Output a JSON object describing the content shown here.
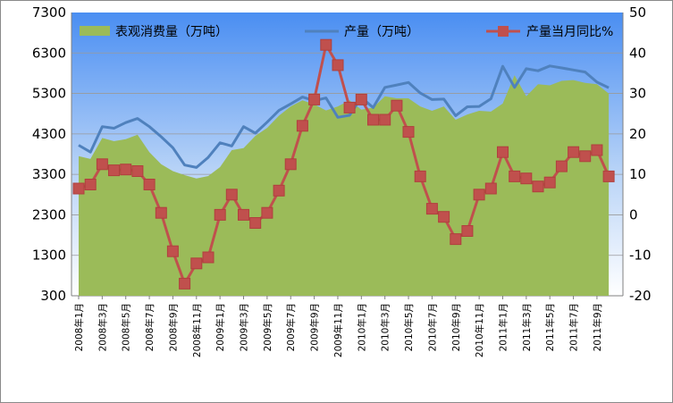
{
  "chart_data": {
    "type": "area+line",
    "title": "",
    "legend": {
      "placement": "top",
      "entries": [
        {
          "label": "表观消费量（万吨）",
          "kind": "area",
          "color": "#9bbb59"
        },
        {
          "label": "产量（万吨）",
          "kind": "line",
          "color": "#4f81bd"
        },
        {
          "label": "产量当月同比%",
          "kind": "line-square",
          "color": "#c0504d"
        }
      ]
    },
    "left_axis": {
      "min": 300,
      "max": 7300,
      "ticks": [
        "300",
        "1300",
        "2300",
        "3300",
        "4300",
        "5300",
        "6300",
        "7300"
      ]
    },
    "right_axis": {
      "min": -20,
      "max": 50,
      "ticks": [
        "-20",
        "-10",
        "0",
        "10",
        "20",
        "30",
        "40",
        "50"
      ]
    },
    "x_tick_labels": [
      "2008年1月",
      "2008年3月",
      "2008年5月",
      "2008年7月",
      "2008年9月",
      "2008年11月",
      "2009年1月",
      "2009年3月",
      "2009年5月",
      "2009年7月",
      "2009年9月",
      "2009年11月",
      "2010年1月",
      "2010年3月",
      "2010年5月",
      "2010年7月",
      "2010年9月",
      "2010年11月",
      "2011年1月",
      "2011年3月",
      "2011年5月",
      "2011年7月",
      "2011年9月"
    ],
    "x": [
      "2008-01",
      "2008-02",
      "2008-03",
      "2008-04",
      "2008-05",
      "2008-06",
      "2008-07",
      "2008-08",
      "2008-09",
      "2008-10",
      "2008-11",
      "2008-12",
      "2009-01",
      "2009-02",
      "2009-03",
      "2009-04",
      "2009-05",
      "2009-06",
      "2009-07",
      "2009-08",
      "2009-09",
      "2009-10",
      "2009-11",
      "2009-12",
      "2010-01",
      "2010-02",
      "2010-03",
      "2010-04",
      "2010-05",
      "2010-06",
      "2010-07",
      "2010-08",
      "2010-09",
      "2010-10",
      "2010-11",
      "2010-12",
      "2011-01",
      "2011-02",
      "2011-03",
      "2011-04",
      "2011-05",
      "2011-06",
      "2011-07",
      "2011-08",
      "2011-09",
      "2011-10"
    ],
    "series": [
      {
        "name": "表观消费量（万吨）",
        "axis": "left",
        "values": [
          3750,
          3680,
          4200,
          4120,
          4170,
          4280,
          3850,
          3550,
          3380,
          3280,
          3200,
          3260,
          3480,
          3900,
          3950,
          4250,
          4450,
          4750,
          4980,
          5130,
          5030,
          4880,
          4980,
          5130,
          4900,
          4950,
          5230,
          5180,
          5180,
          4980,
          4870,
          4980,
          4650,
          4780,
          4870,
          4850,
          5050,
          5750,
          5230,
          5530,
          5500,
          5610,
          5630,
          5560,
          5530,
          5300
        ]
      },
      {
        "name": "产量（万吨）",
        "axis": "left",
        "values": [
          4020,
          3850,
          4480,
          4440,
          4580,
          4680,
          4480,
          4230,
          3960,
          3530,
          3470,
          3720,
          4080,
          4000,
          4480,
          4320,
          4590,
          4880,
          5040,
          5210,
          5120,
          5190,
          4710,
          4760,
          5200,
          4950,
          5450,
          5510,
          5570,
          5310,
          5150,
          5160,
          4750,
          4970,
          4980,
          5170,
          5970,
          5450,
          5910,
          5860,
          5980,
          5930,
          5880,
          5830,
          5580,
          5440
        ]
      },
      {
        "name": "产量当月同比%",
        "axis": "right",
        "values": [
          6.5,
          7.5,
          12.5,
          11.0,
          11.2,
          10.8,
          7.5,
          0.5,
          -9.0,
          -17.0,
          -12.0,
          -10.5,
          0.0,
          5.0,
          0.0,
          -2.0,
          0.5,
          6.0,
          12.5,
          22.0,
          28.5,
          42.0,
          37.0,
          26.5,
          28.5,
          23.5,
          23.5,
          27.0,
          20.5,
          9.5,
          1.5,
          -0.5,
          -6.0,
          -4.0,
          5.0,
          6.5,
          15.5,
          9.5,
          9.0,
          7.0,
          8.0,
          12.0,
          15.5,
          14.5,
          16.0,
          9.5
        ]
      }
    ]
  }
}
